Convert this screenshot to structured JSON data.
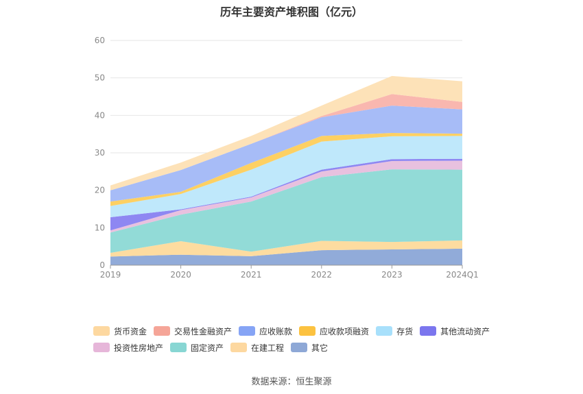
{
  "chart_data": {
    "type": "area",
    "title": "历年主要资产堆积图（亿元）",
    "categories": [
      "2019",
      "2020",
      "2021",
      "2022",
      "2023",
      "2024Q1"
    ],
    "ylim": [
      0,
      60
    ],
    "yticks": [
      0,
      10,
      20,
      30,
      40,
      50,
      60
    ],
    "grid": true,
    "legend_position": "bottom",
    "series": [
      {
        "name": "其它",
        "color": "#91abd9",
        "values": [
          2.3,
          2.8,
          2.4,
          4.0,
          4.2,
          4.4
        ]
      },
      {
        "name": "在建工程",
        "color": "#fddca0",
        "values": [
          1.0,
          3.6,
          1.2,
          2.5,
          2.0,
          2.2
        ]
      },
      {
        "name": "固定资产",
        "color": "#92dbd7",
        "values": [
          5.4,
          7.1,
          13.4,
          17.0,
          19.4,
          18.9
        ]
      },
      {
        "name": "投资性房地产",
        "color": "#e8c1df",
        "values": [
          0.6,
          1.2,
          1.1,
          1.5,
          2.2,
          2.4
        ]
      },
      {
        "name": "其他流动资产",
        "color": "#8e87f2",
        "values": [
          3.5,
          0.2,
          0.2,
          0.5,
          0.5,
          0.5
        ]
      },
      {
        "name": "存货",
        "color": "#bfe8fb",
        "values": [
          3.0,
          4.1,
          7.2,
          7.5,
          6.1,
          6.1
        ]
      },
      {
        "name": "应收款项融资",
        "color": "#fdd063",
        "values": [
          1.2,
          0.6,
          1.8,
          1.5,
          0.9,
          0.6
        ]
      },
      {
        "name": "应收账款",
        "color": "#a7bcf7",
        "values": [
          3.0,
          5.8,
          5.1,
          5.0,
          7.3,
          6.5
        ]
      },
      {
        "name": "交易性金融资产",
        "color": "#f9b7af",
        "values": [
          0.0,
          0.0,
          0.0,
          0.3,
          3.1,
          2.0
        ]
      },
      {
        "name": "货币资金",
        "color": "#fde2b8",
        "values": [
          1.3,
          2.0,
          2.1,
          2.8,
          4.8,
          5.5
        ]
      }
    ]
  },
  "legend": [
    {
      "name": "货币资金",
      "color": "#fdd8a0"
    },
    {
      "name": "交易性金融资产",
      "color": "#f5a598"
    },
    {
      "name": "应收账款",
      "color": "#86a4f5"
    },
    {
      "name": "应收款项融资",
      "color": "#fcc240"
    },
    {
      "name": "存货",
      "color": "#a8e0fb"
    },
    {
      "name": "其他流动资产",
      "color": "#7b76ee"
    },
    {
      "name": "投资性房地产",
      "color": "#e6b6d9"
    },
    {
      "name": "固定资产",
      "color": "#88d6d3"
    },
    {
      "name": "在建工程",
      "color": "#fdd8a0"
    },
    {
      "name": "其它",
      "color": "#8ea8d6"
    }
  ],
  "source": "数据来源：恒生聚源"
}
